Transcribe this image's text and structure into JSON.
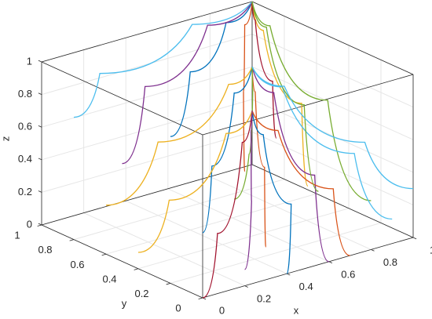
{
  "chart_data": {
    "type": "line3d",
    "xlabel": "x",
    "ylabel": "y",
    "zlabel": "z",
    "xlim": [
      0,
      1
    ],
    "ylim": [
      0,
      1
    ],
    "zlim": [
      0,
      1
    ],
    "xticks": [
      0,
      0.2,
      0.4,
      0.6,
      0.8,
      1
    ],
    "yticks": [
      0,
      0.2,
      0.4,
      0.6,
      0.8,
      1
    ],
    "zticks": [
      0,
      0.2,
      0.4,
      0.6,
      0.8,
      1
    ],
    "grid": true,
    "series": [
      {
        "color": "#0072BD",
        "x": [
          0,
          0.4,
          0.8,
          1
        ],
        "y": [
          0.2,
          0.6,
          0.9,
          1
        ],
        "z": [
          0.9,
          0.97,
          0.99,
          1
        ]
      },
      {
        "color": "#D95319",
        "x": [
          0.2,
          0.5,
          0.85,
          1
        ],
        "y": [
          0,
          0.4,
          0.85,
          1
        ],
        "z": [
          0.7,
          0.9,
          0.98,
          1
        ]
      },
      {
        "color": "#EDB120",
        "x": [
          0.5,
          0.7,
          0.9,
          1
        ],
        "y": [
          0,
          0.3,
          0.8,
          1
        ],
        "z": [
          0.5,
          0.8,
          0.95,
          1
        ]
      },
      {
        "color": "#7E2F8E",
        "x": [
          0,
          0.3,
          0.75,
          1
        ],
        "y": [
          0.5,
          0.75,
          0.95,
          1
        ],
        "z": [
          0.6,
          0.85,
          0.97,
          1
        ]
      },
      {
        "color": "#77AC30",
        "x": [
          0.8,
          0.9,
          0.97,
          1
        ],
        "y": [
          0,
          0.4,
          0.85,
          1
        ],
        "z": [
          0.3,
          0.7,
          0.93,
          1
        ]
      },
      {
        "color": "#4DBEEE",
        "x": [
          0,
          0.2,
          0.7,
          1
        ],
        "y": [
          0.8,
          0.9,
          0.98,
          1
        ],
        "z": [
          0.75,
          0.9,
          0.98,
          1
        ]
      },
      {
        "color": "#A2142F",
        "x": [
          0.35,
          0.6,
          0.9,
          1
        ],
        "y": [
          0,
          0.35,
          0.85,
          1
        ],
        "z": [
          0.85,
          0.95,
          0.99,
          1
        ]
      },
      {
        "color": "#0072BD",
        "x": [
          0,
          0.35,
          0.8,
          1
        ],
        "y": [
          0,
          0.4,
          0.85,
          1
        ],
        "z": [
          0.4,
          0.5,
          0.58,
          0.6
        ]
      },
      {
        "color": "#D95319",
        "x": [
          0.3,
          0.6,
          0.9,
          1
        ],
        "y": [
          0,
          0.4,
          0.85,
          1
        ],
        "z": [
          0.2,
          0.4,
          0.55,
          0.6
        ]
      },
      {
        "color": "#EDB120",
        "x": [
          0,
          0.4,
          0.85,
          1
        ],
        "y": [
          0.6,
          0.8,
          0.95,
          1
        ],
        "z": [
          0.3,
          0.45,
          0.57,
          0.6
        ]
      },
      {
        "color": "#7E2F8E",
        "x": [
          0.6,
          0.8,
          0.95,
          1
        ],
        "y": [
          0,
          0.35,
          0.8,
          1
        ],
        "z": [
          0,
          0.3,
          0.55,
          0.6
        ]
      },
      {
        "color": "#77AC30",
        "x": [
          0.15,
          0.45,
          0.85,
          1
        ],
        "y": [
          0,
          0.3,
          0.8,
          1
        ],
        "z": [
          0.55,
          0.58,
          0.6,
          0.6
        ]
      },
      {
        "color": "#4DBEEE",
        "x": [
          0.9,
          0.95,
          0.99,
          1
        ],
        "y": [
          0,
          0.3,
          0.8,
          1
        ],
        "z": [
          0.15,
          0.4,
          0.57,
          0.6
        ]
      },
      {
        "color": "#A2142F",
        "x": [
          0,
          0.3,
          0.8,
          1
        ],
        "y": [
          0,
          0.3,
          0.8,
          1
        ],
        "z": [
          0,
          0.15,
          0.3,
          0.33
        ]
      },
      {
        "color": "#0072BD",
        "x": [
          0.4,
          0.65,
          0.9,
          1
        ],
        "y": [
          0,
          0.3,
          0.8,
          1
        ],
        "z": [
          0,
          0.2,
          0.31,
          0.33
        ]
      },
      {
        "color": "#D95319",
        "x": [
          0.7,
          0.85,
          0.97,
          1
        ],
        "y": [
          0,
          0.3,
          0.8,
          1
        ],
        "z": [
          0,
          0.22,
          0.31,
          0.33
        ]
      },
      {
        "color": "#EDB120",
        "x": [
          0,
          0.3,
          0.8,
          1
        ],
        "y": [
          0.4,
          0.6,
          0.9,
          1
        ],
        "z": [
          0.1,
          0.22,
          0.31,
          0.33
        ]
      },
      {
        "color": "#7E2F8E",
        "x": [
          0.2,
          0.5,
          0.88,
          1
        ],
        "y": [
          0,
          0.35,
          0.85,
          1
        ],
        "z": [
          0.1,
          0.25,
          0.32,
          0.33
        ]
      },
      {
        "color": "#77AC30",
        "x": [
          0.55,
          0.75,
          0.93,
          1
        ],
        "y": [
          0,
          0.35,
          0.82,
          1
        ],
        "z": [
          0.45,
          0.75,
          0.95,
          1
        ]
      },
      {
        "color": "#4DBEEE",
        "x": [
          1,
          1,
          1,
          1
        ],
        "y": [
          0,
          0.3,
          0.8,
          1
        ],
        "z": [
          0.3,
          0.45,
          0.57,
          0.6
        ]
      }
    ]
  }
}
